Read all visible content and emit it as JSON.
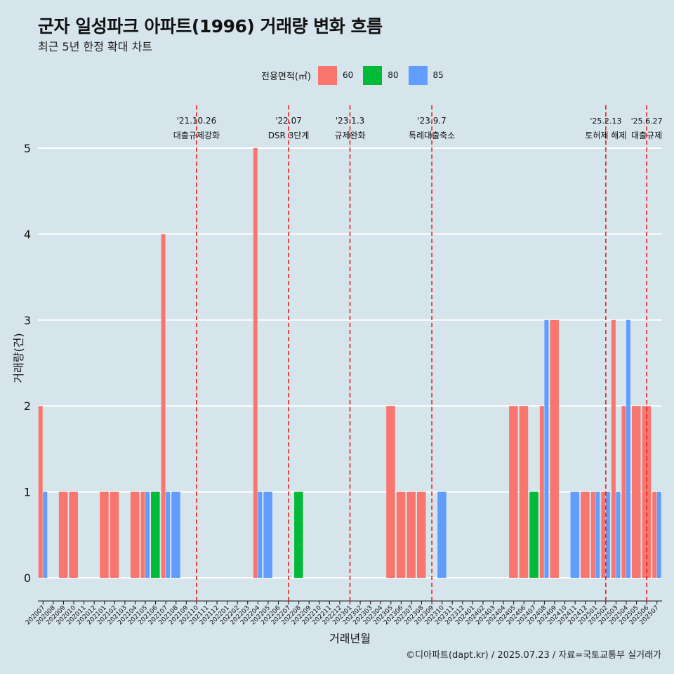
{
  "title": "군자 일성파크 아파트(1996) 거래량 변화 흐름",
  "subtitle": "최근 5년 한정 확대 차트",
  "caption": "©디아파트(dapt.kr) / 2025.07.23 / 자료=국토교통부 실거래가",
  "colors": {
    "60": "#f8766d",
    "80": "#00ba38",
    "85": "#619cff",
    "background": "#d6e4ec",
    "grid": "#ffffff",
    "event": "#e8201a"
  },
  "chart_data": {
    "type": "bar",
    "stacking": "dodge",
    "xlabel": "거래년월",
    "ylabel": "거래량(건)",
    "ylim": [
      0,
      5
    ],
    "yticks": [
      0,
      1,
      2,
      3,
      4,
      5
    ],
    "grid": true,
    "legend": {
      "title": "전용면적(㎡)",
      "position": "top",
      "entries": [
        "60",
        "80",
        "85"
      ]
    },
    "categories": [
      "202007",
      "202008",
      "202009",
      "202010",
      "202011",
      "202012",
      "202101",
      "202102",
      "202103",
      "202104",
      "202105",
      "202106",
      "202107",
      "202108",
      "202109",
      "202110",
      "202111",
      "202112",
      "202201",
      "202202",
      "202203",
      "202204",
      "202205",
      "202206",
      "202207",
      "202208",
      "202209",
      "202210",
      "202211",
      "202212",
      "202301",
      "202302",
      "202303",
      "202304",
      "202305",
      "202306",
      "202307",
      "202308",
      "202309",
      "202310",
      "202311",
      "202312",
      "202401",
      "202402",
      "202403",
      "202404",
      "202405",
      "202406",
      "202407",
      "202408",
      "202409",
      "202410",
      "202411",
      "202412",
      "202501",
      "202502",
      "202503",
      "202504",
      "202505",
      "202506",
      "202507"
    ],
    "series": [
      {
        "name": "60",
        "values": [
          2,
          0,
          1,
          1,
          0,
          0,
          1,
          1,
          0,
          1,
          1,
          0,
          4,
          0,
          0,
          0,
          0,
          0,
          0,
          0,
          0,
          5,
          0,
          0,
          0,
          0,
          0,
          0,
          0,
          0,
          0,
          0,
          0,
          0,
          2,
          1,
          1,
          1,
          0,
          0,
          0,
          0,
          0,
          0,
          0,
          0,
          2,
          2,
          0,
          2,
          3,
          0,
          0,
          1,
          1,
          1,
          3,
          2,
          2,
          2,
          1
        ]
      },
      {
        "name": "80",
        "values": [
          0,
          0,
          0,
          0,
          0,
          0,
          0,
          0,
          0,
          0,
          0,
          1,
          0,
          0,
          0,
          0,
          0,
          0,
          0,
          0,
          0,
          0,
          0,
          0,
          0,
          1,
          0,
          0,
          0,
          0,
          0,
          0,
          0,
          0,
          0,
          0,
          0,
          0,
          0,
          0,
          0,
          0,
          0,
          0,
          0,
          0,
          0,
          0,
          1,
          0,
          0,
          0,
          0,
          0,
          0,
          0,
          0,
          0,
          0,
          0,
          0
        ]
      },
      {
        "name": "85",
        "values": [
          1,
          0,
          0,
          0,
          0,
          0,
          0,
          0,
          0,
          0,
          1,
          0,
          1,
          1,
          0,
          0,
          0,
          0,
          0,
          0,
          0,
          1,
          1,
          0,
          0,
          0,
          0,
          0,
          0,
          0,
          0,
          0,
          0,
          0,
          0,
          0,
          0,
          0,
          0,
          1,
          0,
          0,
          0,
          0,
          0,
          0,
          0,
          0,
          0,
          3,
          0,
          0,
          1,
          0,
          1,
          1,
          1,
          3,
          0,
          0,
          1
        ]
      }
    ],
    "annotations": [
      {
        "x": "202110",
        "date": "'21.10.26",
        "label": "대출규제강화"
      },
      {
        "x": "202207",
        "date": "'22.07",
        "label": "DSR 3단계"
      },
      {
        "x": "202301",
        "date": "'23.1.3",
        "label": "규제완화"
      },
      {
        "x": "202309",
        "date": "'23.9.7",
        "label": "특례대출축소"
      },
      {
        "x": "202502",
        "date": "'25.2.13",
        "label": "토허제 해제"
      },
      {
        "x": "202506",
        "date": "'25.6.27",
        "label": "대출규제"
      }
    ]
  }
}
